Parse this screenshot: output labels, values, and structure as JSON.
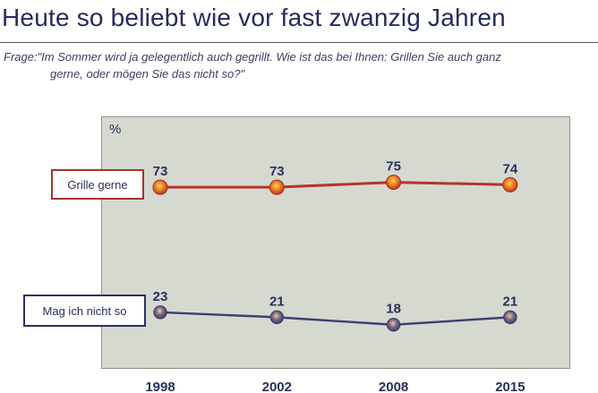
{
  "title": "Heute so beliebt wie vor fast zwanzig Jahren",
  "question": {
    "line1": "Frage:\"Im Sommer wird ja gelegentlich auch gegrillt. Wie ist das bei Ihnen: Grillen Sie auch ganz",
    "line2": "gerne, oder mögen Sie das nicht so?\""
  },
  "chart_data": {
    "type": "line",
    "x": [
      "1998",
      "2002",
      "2008",
      "2015"
    ],
    "series": [
      {
        "name": "Grille gerne",
        "values": [
          73,
          73,
          75,
          74
        ],
        "color": "#b5342a",
        "marker_center": "#ffd54f",
        "marker_mid": "#f08226",
        "marker_edge": "#a92b1f"
      },
      {
        "name": "Mag ich nicht so",
        "values": [
          23,
          21,
          18,
          21
        ],
        "color": "#3b3f6d",
        "marker_center": "#e9d28e",
        "marker_mid": "#7b6886",
        "marker_edge": "#343a66"
      }
    ],
    "ylabel": "%",
    "ylim": [
      0,
      101
    ],
    "grid": false,
    "legend_position": "left-boxes",
    "plot_bg": "#d6d9d0",
    "value_label_color": "#28305c",
    "axis_label_color": "#28305c"
  }
}
